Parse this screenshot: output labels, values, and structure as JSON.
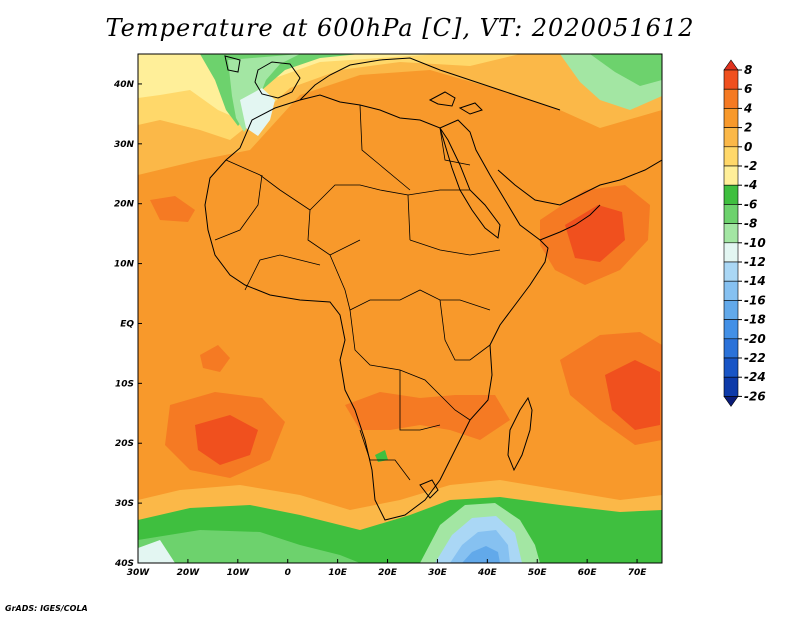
{
  "title": "Temperature at 600hPa [C], VT: 2020051612",
  "credit": "GrADS: IGES/COLA",
  "map": {
    "lon_range": [
      -30,
      75
    ],
    "lat_range": [
      -40,
      45
    ],
    "lat_ticks": [
      {
        "value": 40,
        "label": "40N"
      },
      {
        "value": 30,
        "label": "30N"
      },
      {
        "value": 20,
        "label": "20N"
      },
      {
        "value": 10,
        "label": "10N"
      },
      {
        "value": 0,
        "label": "EQ"
      },
      {
        "value": -10,
        "label": "10S"
      },
      {
        "value": -20,
        "label": "20S"
      },
      {
        "value": -30,
        "label": "30S"
      },
      {
        "value": -40,
        "label": "40S"
      }
    ],
    "lon_ticks": [
      {
        "value": -30,
        "label": "30W"
      },
      {
        "value": -20,
        "label": "20W"
      },
      {
        "value": -10,
        "label": "10W"
      },
      {
        "value": 0,
        "label": "0"
      },
      {
        "value": 10,
        "label": "10E"
      },
      {
        "value": 20,
        "label": "20E"
      },
      {
        "value": 30,
        "label": "30E"
      },
      {
        "value": 40,
        "label": "40E"
      },
      {
        "value": 50,
        "label": "50E"
      },
      {
        "value": 60,
        "label": "60E"
      },
      {
        "value": 70,
        "label": "70E"
      }
    ]
  },
  "colorbar": {
    "labels": [
      "8",
      "6",
      "4",
      "2",
      "0",
      "-2",
      "-4",
      "-6",
      "-8",
      "-10",
      "-12",
      "-14",
      "-16",
      "-18",
      "-20",
      "-22",
      "-24",
      "-26"
    ],
    "colors": [
      "#e0321e",
      "#f0501e",
      "#f57a23",
      "#f8992b",
      "#fbb848",
      "#ffd86a",
      "#ffef99",
      "#3fbf3f",
      "#6dd26d",
      "#a3e6a3",
      "#e3f6f2",
      "#aad7f5",
      "#86c1f1",
      "#62a9ea",
      "#4390e6",
      "#2b72d9",
      "#1955c6",
      "#0d3aa9",
      "#0a1c78"
    ]
  }
}
